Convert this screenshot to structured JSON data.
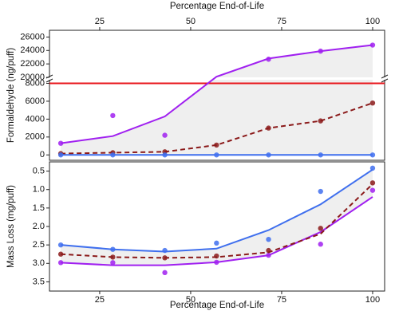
{
  "chart_data": [
    {
      "type": "line",
      "x_label": "Percentage End-of-Life",
      "y_label": "Formaldehyde (ng/puff)",
      "x": [
        14.3,
        28.6,
        42.9,
        57.1,
        71.4,
        85.7,
        100
      ],
      "xlim": [
        11.2,
        103.3
      ],
      "xticks": [
        25,
        50,
        75,
        100
      ],
      "y_segments": [
        {
          "ylim": [
            -600,
            8400
          ],
          "yticks": [
            0,
            2000,
            4000,
            6000,
            8000
          ]
        },
        {
          "ylim": [
            20000,
            27000
          ],
          "yticks": [
            20000,
            22000,
            24000,
            26000
          ]
        }
      ],
      "hline": {
        "value": 8000,
        "color": "#e8161b"
      },
      "band_color": "#efefef",
      "series": [
        {
          "color": "#a020f0",
          "dash": false,
          "values": [
            1300,
            2100,
            4300,
            20100,
            22800,
            23900,
            24800
          ],
          "points": [
            1300,
            4400,
            2200,
            null,
            22700,
            23900,
            24800
          ]
        },
        {
          "color": "#8b1a1a",
          "dash": true,
          "values": [
            150,
            250,
            350,
            1100,
            3000,
            3800,
            5800
          ],
          "points": [
            150,
            250,
            350,
            1100,
            3000,
            3800,
            5800
          ]
        },
        {
          "color": "#3f6fee",
          "dash": false,
          "values": [
            0,
            0,
            0,
            0,
            0,
            0,
            0
          ],
          "points": [
            0,
            0,
            0,
            0,
            0,
            0,
            0
          ]
        }
      ]
    },
    {
      "type": "line",
      "x_label": "Percentage End-of-Life",
      "y_label": "Mass Loss (mg/puff)",
      "x": [
        14.3,
        28.6,
        42.9,
        57.1,
        71.4,
        85.7,
        100
      ],
      "xlim": [
        11.2,
        103.3
      ],
      "xticks": [
        25,
        50,
        75,
        100
      ],
      "ylim": [
        0.25,
        3.75
      ],
      "y_inverted": true,
      "yticks": [
        0.5,
        {
          "value": 1,
          "label": "1.0"
        },
        1.5,
        {
          "value": 2,
          "label": "2.0"
        },
        2.5,
        {
          "value": 3,
          "label": "3.0"
        },
        3.5
      ],
      "band_color": "#efefef",
      "series": [
        {
          "color": "#a020f0",
          "dash": false,
          "values": [
            2.98,
            3.05,
            3.05,
            2.97,
            2.78,
            2.15,
            1.2
          ],
          "points": [
            2.98,
            2.98,
            3.25,
            2.97,
            2.78,
            2.48,
            1.02
          ]
        },
        {
          "color": "#8b1a1a",
          "dash": true,
          "values": [
            2.75,
            2.83,
            2.85,
            2.83,
            2.7,
            2.2,
            0.85
          ],
          "points": [
            2.75,
            2.83,
            2.85,
            2.8,
            2.65,
            2.05,
            0.82
          ]
        },
        {
          "color": "#3f6fee",
          "dash": false,
          "values": [
            2.5,
            2.62,
            2.68,
            2.6,
            2.1,
            1.4,
            0.46
          ],
          "points": [
            2.5,
            2.62,
            2.65,
            2.45,
            2.35,
            1.05,
            0.42
          ]
        }
      ]
    }
  ]
}
